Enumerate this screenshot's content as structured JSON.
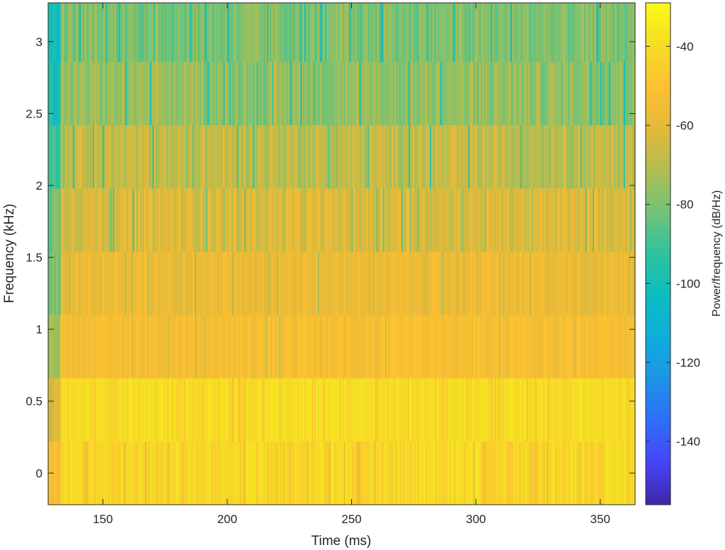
{
  "chart_data": {
    "type": "heatmap",
    "plot_kind": "spectrogram",
    "xlabel": "Time (ms)",
    "ylabel": "Frequency (kHz)",
    "colorbar_label": "Power/frequency (dB/Hz)",
    "x_range": [
      128,
      364
    ],
    "y_range": [
      -0.22,
      3.27
    ],
    "x_ticks": [
      150,
      200,
      250,
      300,
      350
    ],
    "x_tick_labels": [
      "150",
      "200",
      "250",
      "300",
      "350"
    ],
    "y_ticks": [
      0,
      0.5,
      1,
      1.5,
      2,
      2.5,
      3
    ],
    "y_tick_labels": [
      "0",
      "0.5",
      "1",
      "1.5",
      "2",
      "2.5",
      "3"
    ],
    "color_range_db": [
      -156,
      -29
    ],
    "colorbar_ticks": [
      -40,
      -60,
      -80,
      -100,
      -120,
      -140
    ],
    "colorbar_tick_labels": [
      "-40",
      "-60",
      "-80",
      "-100",
      "-120",
      "-140"
    ],
    "colormap": "parula",
    "colormap_stops": [
      "#3e26a8",
      "#4743f8",
      "#2f6efa",
      "#1e93e6",
      "#0eaedb",
      "#0bbdbf",
      "#2fc29f",
      "#72c378",
      "#b1bd50",
      "#e4b93a",
      "#fdc031",
      "#f5dd26",
      "#f9fb15"
    ],
    "frequency_bands_khz": [
      {
        "low": -0.22,
        "high": 0.22,
        "mean_db": -42,
        "spread_db": 6
      },
      {
        "low": 0.22,
        "high": 0.66,
        "mean_db": -40,
        "spread_db": 4
      },
      {
        "low": 0.66,
        "high": 1.1,
        "mean_db": -53,
        "spread_db": 5
      },
      {
        "low": 1.1,
        "high": 1.54,
        "mean_db": -57,
        "spread_db": 6
      },
      {
        "low": 1.54,
        "high": 1.98,
        "mean_db": -62,
        "spread_db": 8
      },
      {
        "low": 1.98,
        "high": 2.42,
        "mean_db": -68,
        "spread_db": 9
      },
      {
        "low": 2.42,
        "high": 2.86,
        "mean_db": -76,
        "spread_db": 9
      },
      {
        "low": 2.86,
        "high": 3.27,
        "mean_db": -80,
        "spread_db": 9
      }
    ],
    "time_step_ms": 0.5,
    "onset_ms": 133,
    "pre_onset_offset_db": -20,
    "grid": false
  }
}
